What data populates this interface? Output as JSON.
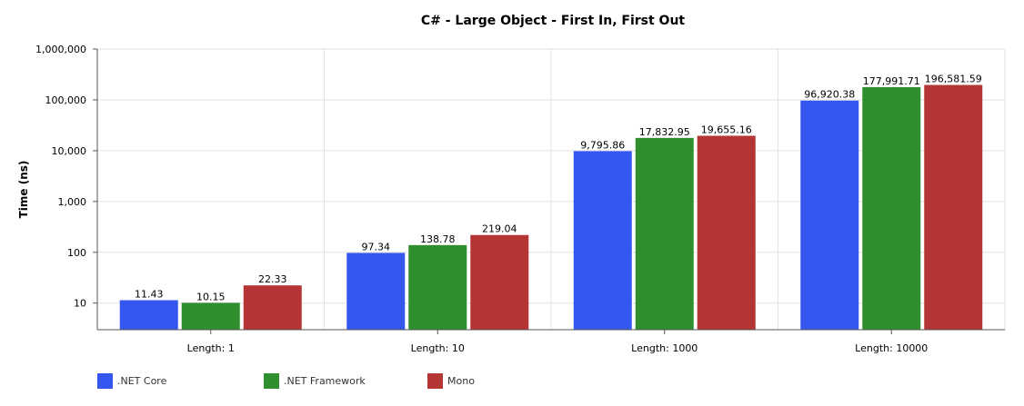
{
  "chart_data": {
    "type": "bar",
    "title": "C# - Large Object -  First In, First Out",
    "ylabel": "Time (ns)",
    "xlabel": "",
    "yscale": "log",
    "ylim": [
      3,
      1000000
    ],
    "yticks": [
      10,
      100,
      1000,
      10000,
      100000,
      1000000
    ],
    "ytick_labels": [
      "10",
      "100",
      "1,000",
      "10,000",
      "100,000",
      "1,000,000"
    ],
    "categories": [
      "Length: 1",
      "Length: 10",
      "Length: 1000",
      "Length: 10000"
    ],
    "series": [
      {
        "name": ".NET Core",
        "color": "#3557f0",
        "values": [
          11.43,
          97.34,
          9795.86,
          96920.38
        ],
        "labels": [
          "11.43",
          "97.34",
          "9,795.86",
          "96,920.38"
        ]
      },
      {
        "name": ".NET Framework",
        "color": "#2f8f2f",
        "values": [
          10.15,
          138.78,
          17832.95,
          177991.71
        ],
        "labels": [
          "10.15",
          "138.78",
          "17,832.95",
          "177,991.71"
        ]
      },
      {
        "name": "Mono",
        "color": "#b53535",
        "values": [
          22.33,
          219.04,
          19655.16,
          196581.59
        ],
        "labels": [
          "22.33",
          "219.04",
          "19,655.16",
          "196,581.59"
        ]
      }
    ],
    "legend_position": "bottom-left"
  }
}
